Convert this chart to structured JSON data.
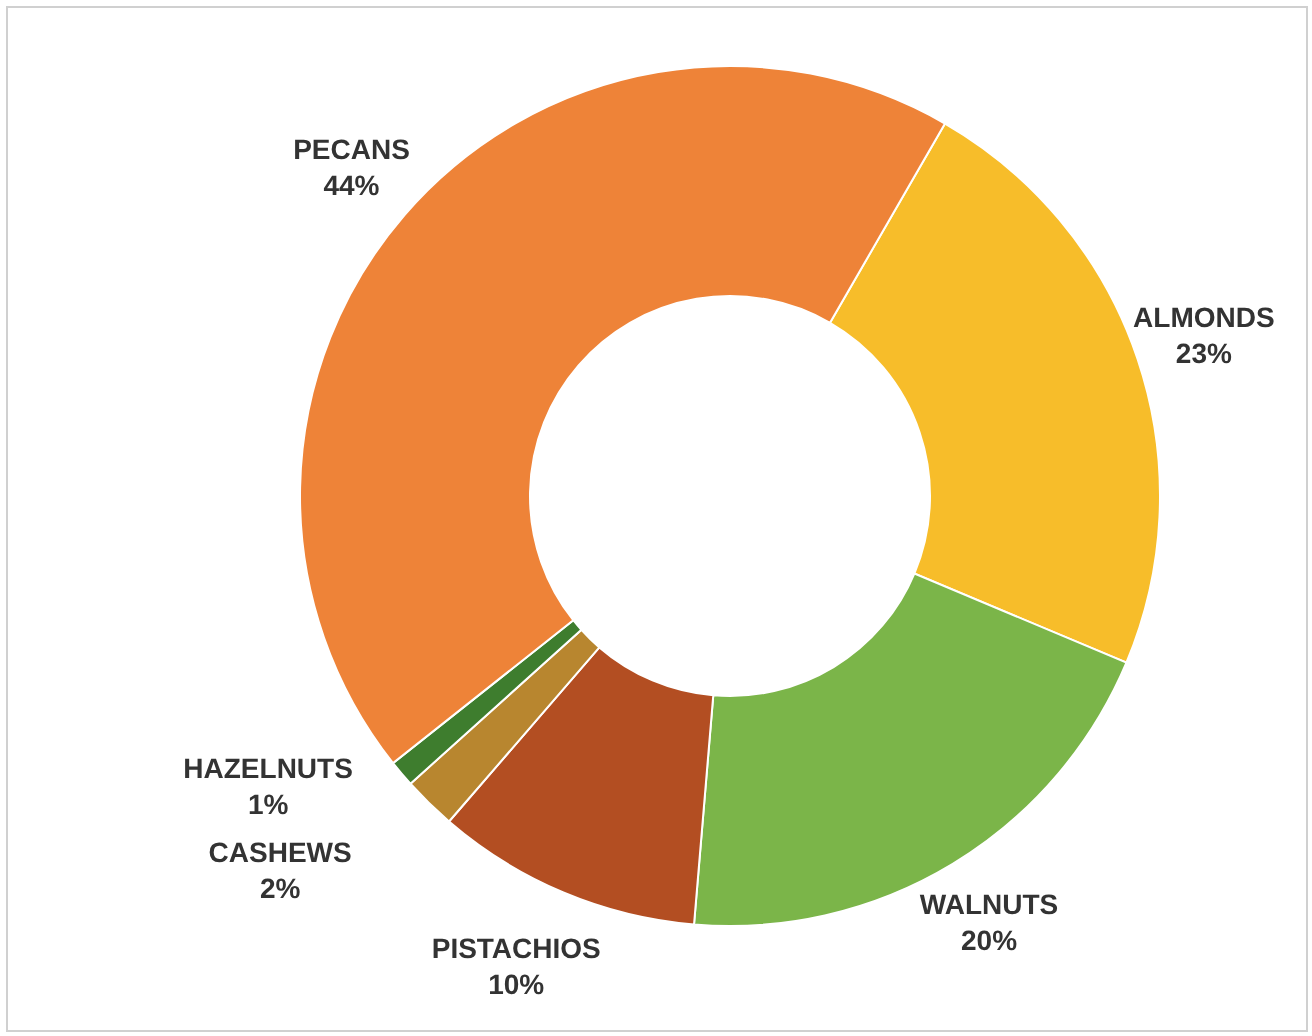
{
  "chart_data": {
    "type": "donut",
    "categories": [
      "ALMONDS",
      "WALNUTS",
      "PISTACHIOS",
      "CASHEWS",
      "HAZELNUTS",
      "PECANS"
    ],
    "values": [
      23,
      20,
      10,
      2,
      1,
      44
    ],
    "value_labels": [
      "23%",
      "20%",
      "10%",
      "2%",
      "1%",
      "44%"
    ],
    "colors": [
      "#f7bd2a",
      "#7bb549",
      "#b34e22",
      "#b8862f",
      "#3e7d2e",
      "#ee8338"
    ]
  }
}
